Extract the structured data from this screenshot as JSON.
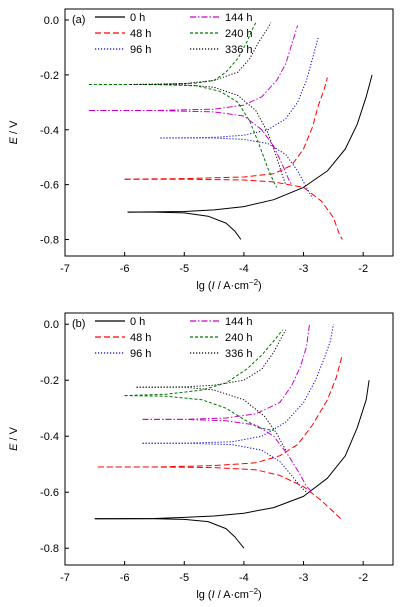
{
  "chart_data": [
    {
      "type": "line",
      "panel_label": "(a)",
      "xlabel": "lg (I / A·cm⁻²)",
      "xlabel_parts": {
        "prefix": "lg (",
        "var": "I",
        "mid": " / A·cm",
        "sup": "−2",
        "suffix": ")"
      },
      "ylabel": "E / V",
      "ylabel_parts": {
        "var": "E",
        "rest": " / V"
      },
      "xlim": [
        -7,
        -1.5
      ],
      "ylim": [
        -0.86,
        0.04
      ],
      "x_ticks": [
        -7,
        -6,
        -5,
        -4,
        -3,
        -2
      ],
      "y_ticks": [
        -0.8,
        -0.6,
        -0.4,
        -0.2,
        0.0
      ],
      "x_tick_labels": [
        "-7",
        "-6",
        "-5",
        "-4",
        "-3",
        "-2"
      ],
      "y_tick_labels": [
        "-0.8",
        "-0.6",
        "-0.4",
        "-0.2",
        "0.0"
      ],
      "grid": false,
      "legend_position": "top-left",
      "series": [
        {
          "name": "0 h",
          "color": "#000000",
          "dash": "solid",
          "cathodic": [
            [
              -5.95,
              -0.7
            ],
            [
              -5.5,
              -0.7
            ],
            [
              -5.0,
              -0.703
            ],
            [
              -4.6,
              -0.715
            ],
            [
              -4.3,
              -0.74
            ],
            [
              -4.15,
              -0.77
            ],
            [
              -4.05,
              -0.8
            ]
          ],
          "anodic": [
            [
              -5.95,
              -0.7
            ],
            [
              -5.0,
              -0.698
            ],
            [
              -4.5,
              -0.692
            ],
            [
              -4.0,
              -0.68
            ],
            [
              -3.5,
              -0.655
            ],
            [
              -3.0,
              -0.61
            ],
            [
              -2.6,
              -0.55
            ],
            [
              -2.3,
              -0.47
            ],
            [
              -2.1,
              -0.38
            ],
            [
              -1.95,
              -0.28
            ],
            [
              -1.85,
              -0.2
            ]
          ]
        },
        {
          "name": "48 h",
          "color": "#ff0000",
          "dash": "long",
          "cathodic": [
            [
              -6.0,
              -0.58
            ],
            [
              -5.0,
              -0.58
            ],
            [
              -4.0,
              -0.583
            ],
            [
              -3.5,
              -0.59
            ],
            [
              -3.0,
              -0.61
            ],
            [
              -2.7,
              -0.66
            ],
            [
              -2.5,
              -0.72
            ],
            [
              -2.4,
              -0.78
            ],
            [
              -2.35,
              -0.8
            ]
          ],
          "anodic": [
            [
              -6.0,
              -0.58
            ],
            [
              -5.0,
              -0.578
            ],
            [
              -4.0,
              -0.572
            ],
            [
              -3.5,
              -0.56
            ],
            [
              -3.2,
              -0.53
            ],
            [
              -3.0,
              -0.47
            ],
            [
              -2.85,
              -0.39
            ],
            [
              -2.75,
              -0.31
            ],
            [
              -2.65,
              -0.25
            ],
            [
              -2.6,
              -0.21
            ]
          ]
        },
        {
          "name": "96 h",
          "color": "#0000cc",
          "dash": "dot",
          "cathodic": [
            [
              -5.4,
              -0.43
            ],
            [
              -4.5,
              -0.43
            ],
            [
              -4.0,
              -0.435
            ],
            [
              -3.6,
              -0.45
            ],
            [
              -3.3,
              -0.49
            ],
            [
              -3.1,
              -0.55
            ],
            [
              -2.95,
              -0.61
            ],
            [
              -2.85,
              -0.65
            ]
          ],
          "anodic": [
            [
              -5.4,
              -0.43
            ],
            [
              -4.5,
              -0.428
            ],
            [
              -4.0,
              -0.42
            ],
            [
              -3.6,
              -0.4
            ],
            [
              -3.3,
              -0.36
            ],
            [
              -3.1,
              -0.3
            ],
            [
              -2.95,
              -0.22
            ],
            [
              -2.85,
              -0.14
            ],
            [
              -2.75,
              -0.06
            ]
          ]
        },
        {
          "name": "144 h",
          "color": "#cc00cc",
          "dash": "dashdot",
          "cathodic": [
            [
              -6.6,
              -0.33
            ],
            [
              -5.5,
              -0.33
            ],
            [
              -4.5,
              -0.335
            ],
            [
              -4.0,
              -0.35
            ],
            [
              -3.7,
              -0.4
            ],
            [
              -3.5,
              -0.46
            ],
            [
              -3.35,
              -0.53
            ],
            [
              -3.25,
              -0.58
            ],
            [
              -3.2,
              -0.6
            ]
          ],
          "anodic": [
            [
              -6.6,
              -0.33
            ],
            [
              -5.5,
              -0.33
            ],
            [
              -4.5,
              -0.325
            ],
            [
              -4.0,
              -0.31
            ],
            [
              -3.7,
              -0.28
            ],
            [
              -3.45,
              -0.22
            ],
            [
              -3.3,
              -0.16
            ],
            [
              -3.2,
              -0.09
            ],
            [
              -3.1,
              -0.02
            ]
          ]
        },
        {
          "name": "240 h",
          "color": "#007700",
          "dash": "short",
          "cathodic": [
            [
              -6.6,
              -0.235
            ],
            [
              -5.5,
              -0.235
            ],
            [
              -4.8,
              -0.24
            ],
            [
              -4.4,
              -0.26
            ],
            [
              -4.1,
              -0.3
            ],
            [
              -3.9,
              -0.37
            ],
            [
              -3.75,
              -0.45
            ],
            [
              -3.6,
              -0.54
            ],
            [
              -3.5,
              -0.59
            ],
            [
              -3.45,
              -0.61
            ]
          ],
          "anodic": [
            [
              -6.6,
              -0.235
            ],
            [
              -5.5,
              -0.235
            ],
            [
              -4.8,
              -0.23
            ],
            [
              -4.5,
              -0.22
            ],
            [
              -4.3,
              -0.19
            ],
            [
              -4.1,
              -0.14
            ],
            [
              -3.95,
              -0.08
            ],
            [
              -3.85,
              -0.03
            ],
            [
              -3.8,
              -0.01
            ]
          ]
        },
        {
          "name": "336 h",
          "color": "#000000",
          "dash": "dot",
          "cathodic": [
            [
              -5.9,
              -0.235
            ],
            [
              -5.0,
              -0.236
            ],
            [
              -4.5,
              -0.245
            ],
            [
              -4.1,
              -0.275
            ],
            [
              -3.8,
              -0.33
            ],
            [
              -3.6,
              -0.41
            ],
            [
              -3.45,
              -0.5
            ],
            [
              -3.35,
              -0.57
            ],
            [
              -3.3,
              -0.6
            ]
          ],
          "anodic": [
            [
              -5.9,
              -0.235
            ],
            [
              -5.0,
              -0.232
            ],
            [
              -4.5,
              -0.22
            ],
            [
              -4.1,
              -0.19
            ],
            [
              -3.9,
              -0.14
            ],
            [
              -3.75,
              -0.08
            ],
            [
              -3.6,
              -0.03
            ],
            [
              -3.55,
              -0.01
            ]
          ]
        }
      ]
    },
    {
      "type": "line",
      "panel_label": "(b)",
      "xlabel": "lg (I / A·cm⁻²)",
      "xlabel_parts": {
        "prefix": "lg (",
        "var": "I",
        "mid": " / A·cm",
        "sup": "−2",
        "suffix": ")"
      },
      "ylabel": "E / V",
      "ylabel_parts": {
        "var": "E",
        "rest": " / V"
      },
      "xlim": [
        -7,
        -1.5
      ],
      "ylim": [
        -0.86,
        0.04
      ],
      "x_ticks": [
        -7,
        -6,
        -5,
        -4,
        -3,
        -2
      ],
      "y_ticks": [
        -0.8,
        -0.6,
        -0.4,
        -0.2,
        0.0
      ],
      "x_tick_labels": [
        "-7",
        "-6",
        "-5",
        "-4",
        "-3",
        "-2"
      ],
      "y_tick_labels": [
        "-0.8",
        "-0.6",
        "-0.4",
        "-0.2",
        "0.0"
      ],
      "grid": false,
      "legend_position": "top-left",
      "series": [
        {
          "name": "0 h",
          "color": "#000000",
          "dash": "solid",
          "cathodic": [
            [
              -6.5,
              -0.695
            ],
            [
              -5.5,
              -0.695
            ],
            [
              -5.0,
              -0.697
            ],
            [
              -4.6,
              -0.705
            ],
            [
              -4.3,
              -0.73
            ],
            [
              -4.15,
              -0.76
            ],
            [
              -4.0,
              -0.8
            ]
          ],
          "anodic": [
            [
              -6.5,
              -0.695
            ],
            [
              -5.5,
              -0.694
            ],
            [
              -5.0,
              -0.69
            ],
            [
              -4.5,
              -0.685
            ],
            [
              -4.0,
              -0.675
            ],
            [
              -3.5,
              -0.655
            ],
            [
              -3.0,
              -0.615
            ],
            [
              -2.6,
              -0.55
            ],
            [
              -2.3,
              -0.47
            ],
            [
              -2.1,
              -0.37
            ],
            [
              -1.95,
              -0.27
            ],
            [
              -1.9,
              -0.2
            ]
          ]
        },
        {
          "name": "48 h",
          "color": "#ff0000",
          "dash": "long",
          "cathodic": [
            [
              -6.45,
              -0.51
            ],
            [
              -5.5,
              -0.51
            ],
            [
              -4.5,
              -0.512
            ],
            [
              -3.8,
              -0.52
            ],
            [
              -3.4,
              -0.54
            ],
            [
              -3.0,
              -0.58
            ],
            [
              -2.7,
              -0.63
            ],
            [
              -2.5,
              -0.67
            ],
            [
              -2.35,
              -0.7
            ]
          ],
          "anodic": [
            [
              -6.45,
              -0.51
            ],
            [
              -5.5,
              -0.51
            ],
            [
              -4.5,
              -0.505
            ],
            [
              -3.8,
              -0.495
            ],
            [
              -3.4,
              -0.47
            ],
            [
              -3.1,
              -0.43
            ],
            [
              -2.85,
              -0.36
            ],
            [
              -2.6,
              -0.27
            ],
            [
              -2.45,
              -0.19
            ],
            [
              -2.35,
              -0.11
            ]
          ]
        },
        {
          "name": "96 h",
          "color": "#0000cc",
          "dash": "dot",
          "cathodic": [
            [
              -5.7,
              -0.425
            ],
            [
              -5.0,
              -0.425
            ],
            [
              -4.2,
              -0.43
            ],
            [
              -3.7,
              -0.45
            ],
            [
              -3.4,
              -0.49
            ],
            [
              -3.2,
              -0.54
            ],
            [
              -3.05,
              -0.58
            ],
            [
              -2.95,
              -0.6
            ]
          ],
          "anodic": [
            [
              -5.7,
              -0.425
            ],
            [
              -5.0,
              -0.425
            ],
            [
              -4.2,
              -0.42
            ],
            [
              -3.7,
              -0.4
            ],
            [
              -3.3,
              -0.35
            ],
            [
              -3.0,
              -0.28
            ],
            [
              -2.8,
              -0.2
            ],
            [
              -2.65,
              -0.12
            ],
            [
              -2.55,
              -0.06
            ],
            [
              -2.5,
              0.0
            ]
          ]
        },
        {
          "name": "144 h",
          "color": "#cc00cc",
          "dash": "dashdot",
          "cathodic": [
            [
              -5.7,
              -0.34
            ],
            [
              -5.0,
              -0.34
            ],
            [
              -4.3,
              -0.345
            ],
            [
              -3.8,
              -0.36
            ],
            [
              -3.5,
              -0.4
            ],
            [
              -3.25,
              -0.47
            ],
            [
              -3.05,
              -0.54
            ],
            [
              -2.95,
              -0.58
            ],
            [
              -2.85,
              -0.6
            ]
          ],
          "anodic": [
            [
              -5.7,
              -0.34
            ],
            [
              -5.0,
              -0.34
            ],
            [
              -4.3,
              -0.335
            ],
            [
              -3.8,
              -0.32
            ],
            [
              -3.4,
              -0.28
            ],
            [
              -3.2,
              -0.22
            ],
            [
              -3.05,
              -0.15
            ],
            [
              -2.95,
              -0.08
            ],
            [
              -2.9,
              0.0
            ]
          ]
        },
        {
          "name": "240 h",
          "color": "#007700",
          "dash": "short",
          "cathodic": [
            [
              -6.0,
              -0.255
            ],
            [
              -5.3,
              -0.257
            ],
            [
              -4.7,
              -0.27
            ],
            [
              -4.3,
              -0.3
            ],
            [
              -4.0,
              -0.34
            ],
            [
              -3.75,
              -0.37
            ],
            [
              -3.5,
              -0.38
            ]
          ],
          "anodic": [
            [
              -6.0,
              -0.255
            ],
            [
              -5.3,
              -0.25
            ],
            [
              -4.7,
              -0.235
            ],
            [
              -4.3,
              -0.21
            ],
            [
              -3.95,
              -0.16
            ],
            [
              -3.7,
              -0.11
            ],
            [
              -3.5,
              -0.06
            ],
            [
              -3.35,
              -0.02
            ]
          ]
        },
        {
          "name": "336 h",
          "color": "#000000",
          "dash": "dot",
          "cathodic": [
            [
              -5.8,
              -0.225
            ],
            [
              -5.0,
              -0.225
            ],
            [
              -4.5,
              -0.235
            ],
            [
              -4.0,
              -0.27
            ],
            [
              -3.65,
              -0.33
            ],
            [
              -3.45,
              -0.39
            ],
            [
              -3.35,
              -0.43
            ],
            [
              -3.3,
              -0.45
            ]
          ],
          "anodic": [
            [
              -5.8,
              -0.225
            ],
            [
              -5.0,
              -0.224
            ],
            [
              -4.5,
              -0.218
            ],
            [
              -4.0,
              -0.2
            ],
            [
              -3.7,
              -0.16
            ],
            [
              -3.5,
              -0.1
            ],
            [
              -3.35,
              -0.04
            ],
            [
              -3.3,
              -0.02
            ]
          ]
        }
      ]
    }
  ]
}
